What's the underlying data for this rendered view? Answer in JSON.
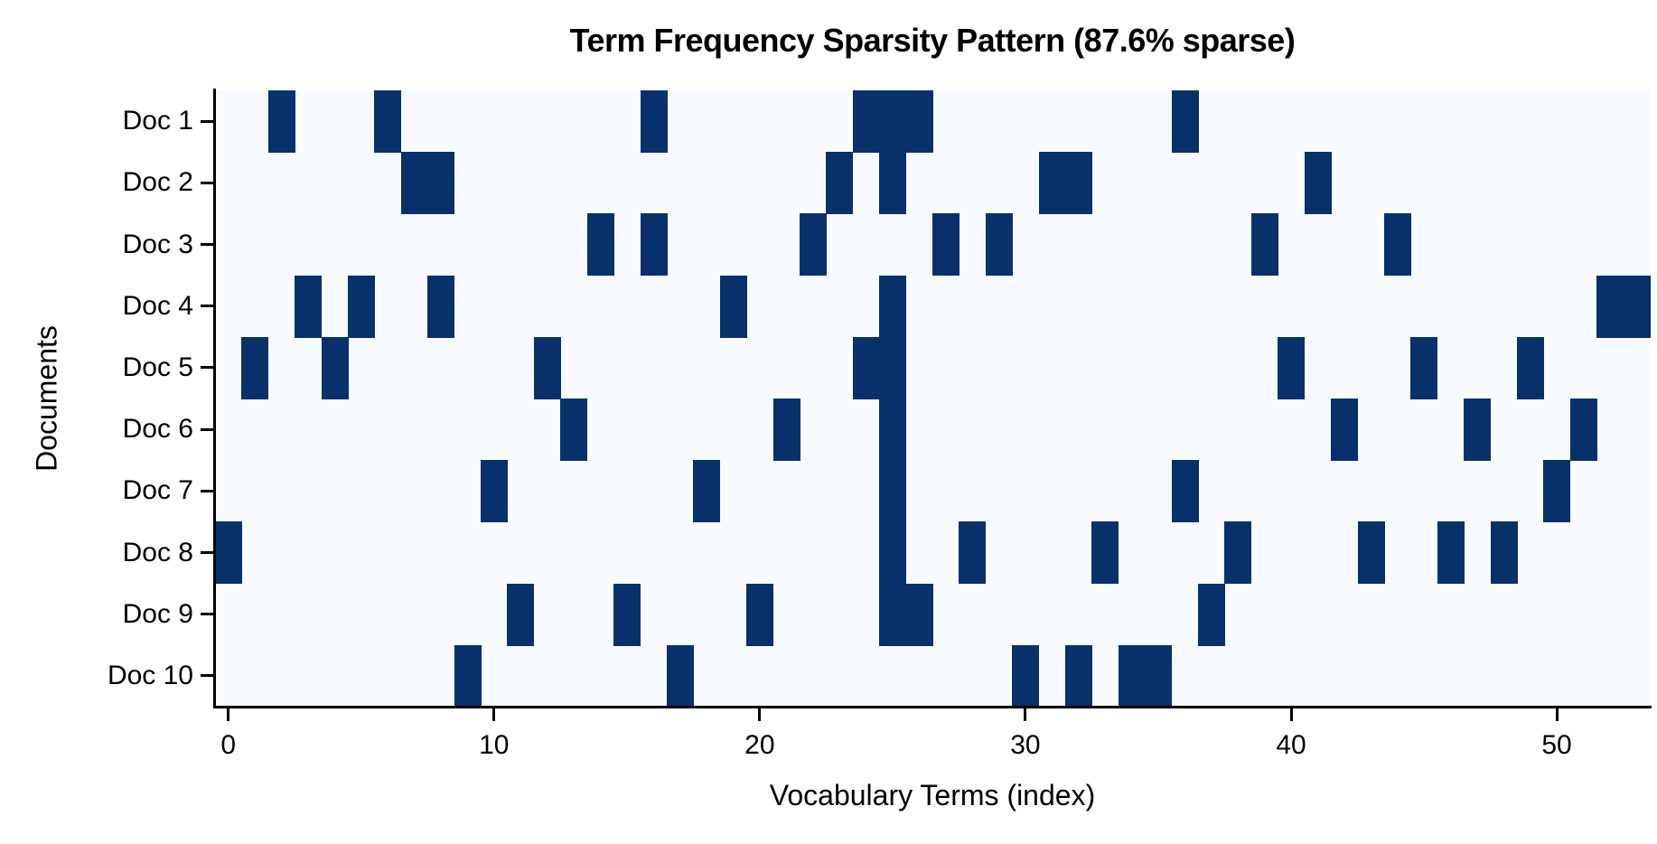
{
  "chart_data": {
    "type": "heatmap",
    "title": "Term Frequency Sparsity Pattern (87.6% sparse)",
    "xlabel": "Vocabulary Terms (index)",
    "ylabel": "Documents",
    "x_ticks": [
      0,
      10,
      20,
      30,
      40,
      50
    ],
    "xlim": [
      -0.5,
      53.5
    ],
    "n_terms": 54,
    "rows": [
      "Doc 1",
      "Doc 2",
      "Doc 3",
      "Doc 4",
      "Doc 5",
      "Doc 6",
      "Doc 7",
      "Doc 8",
      "Doc 9",
      "Doc 10"
    ],
    "nonzero_columns": [
      [
        2,
        6,
        16,
        24,
        25,
        26,
        36
      ],
      [
        7,
        8,
        23,
        25,
        31,
        32,
        41
      ],
      [
        14,
        16,
        22,
        27,
        29,
        39,
        44
      ],
      [
        3,
        5,
        8,
        19,
        25,
        52,
        53
      ],
      [
        1,
        4,
        12,
        24,
        25,
        40,
        45,
        49
      ],
      [
        13,
        21,
        25,
        42,
        47,
        51
      ],
      [
        10,
        18,
        25,
        36,
        50
      ],
      [
        0,
        25,
        28,
        33,
        38,
        43,
        46,
        48
      ],
      [
        11,
        15,
        20,
        25,
        26,
        37
      ],
      [
        9,
        17,
        30,
        32,
        34,
        35
      ]
    ],
    "sparsity_percent": 87.6,
    "colormap": "Blues",
    "colors": {
      "zero": "#f7fbff",
      "nonzero": "#08306b"
    },
    "grid": false,
    "legend": null
  }
}
